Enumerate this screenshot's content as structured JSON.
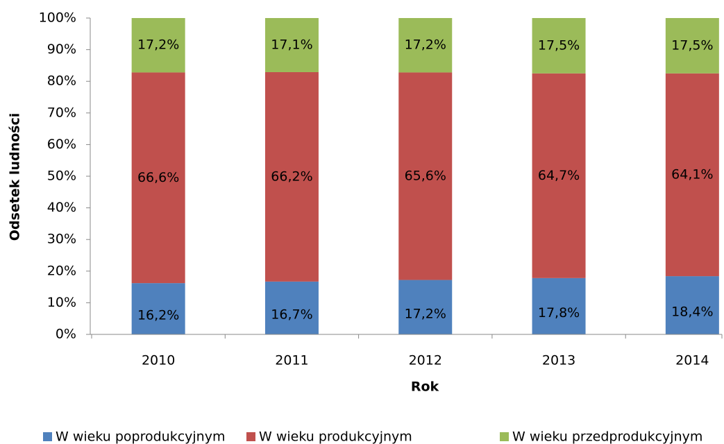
{
  "chart_data": {
    "type": "stacked_bar",
    "x_label": "Rok",
    "y_label": "Odsetek ludności",
    "categories": [
      "2010",
      "2011",
      "2012",
      "2013",
      "2014"
    ],
    "series": [
      {
        "name": "W wieku poprodukcyjnym",
        "color": "#4f81bd",
        "values": [
          16.2,
          16.7,
          17.2,
          17.8,
          18.4
        ],
        "value_labels": [
          "16,2%",
          "16,7%",
          "17,2%",
          "17,8%",
          "18,4%"
        ]
      },
      {
        "name": "W wieku produkcyjnym",
        "color": "#c0504d",
        "values": [
          66.6,
          66.2,
          65.6,
          64.7,
          64.1
        ],
        "value_labels": [
          "66,6%",
          "66,2%",
          "65,6%",
          "64,7%",
          "64,1%"
        ]
      },
      {
        "name": "W wieku przedprodukcyjnym",
        "color": "#9bbb59",
        "values": [
          17.2,
          17.1,
          17.2,
          17.5,
          17.5
        ],
        "value_labels": [
          "17,2%",
          "17,1%",
          "17,2%",
          "17,5%",
          "17,5%"
        ]
      }
    ],
    "ylim": [
      0,
      100
    ],
    "yticks": [
      {
        "value": 0,
        "label": "0%"
      },
      {
        "value": 10,
        "label": "10%"
      },
      {
        "value": 20,
        "label": "20%"
      },
      {
        "value": 30,
        "label": "30%"
      },
      {
        "value": 40,
        "label": "40%"
      },
      {
        "value": 50,
        "label": "50%"
      },
      {
        "value": 60,
        "label": "60%"
      },
      {
        "value": 70,
        "label": "70%"
      },
      {
        "value": 80,
        "label": "80%"
      },
      {
        "value": 90,
        "label": "90%"
      },
      {
        "value": 100,
        "label": "100%"
      }
    ],
    "legend": "bottom"
  }
}
